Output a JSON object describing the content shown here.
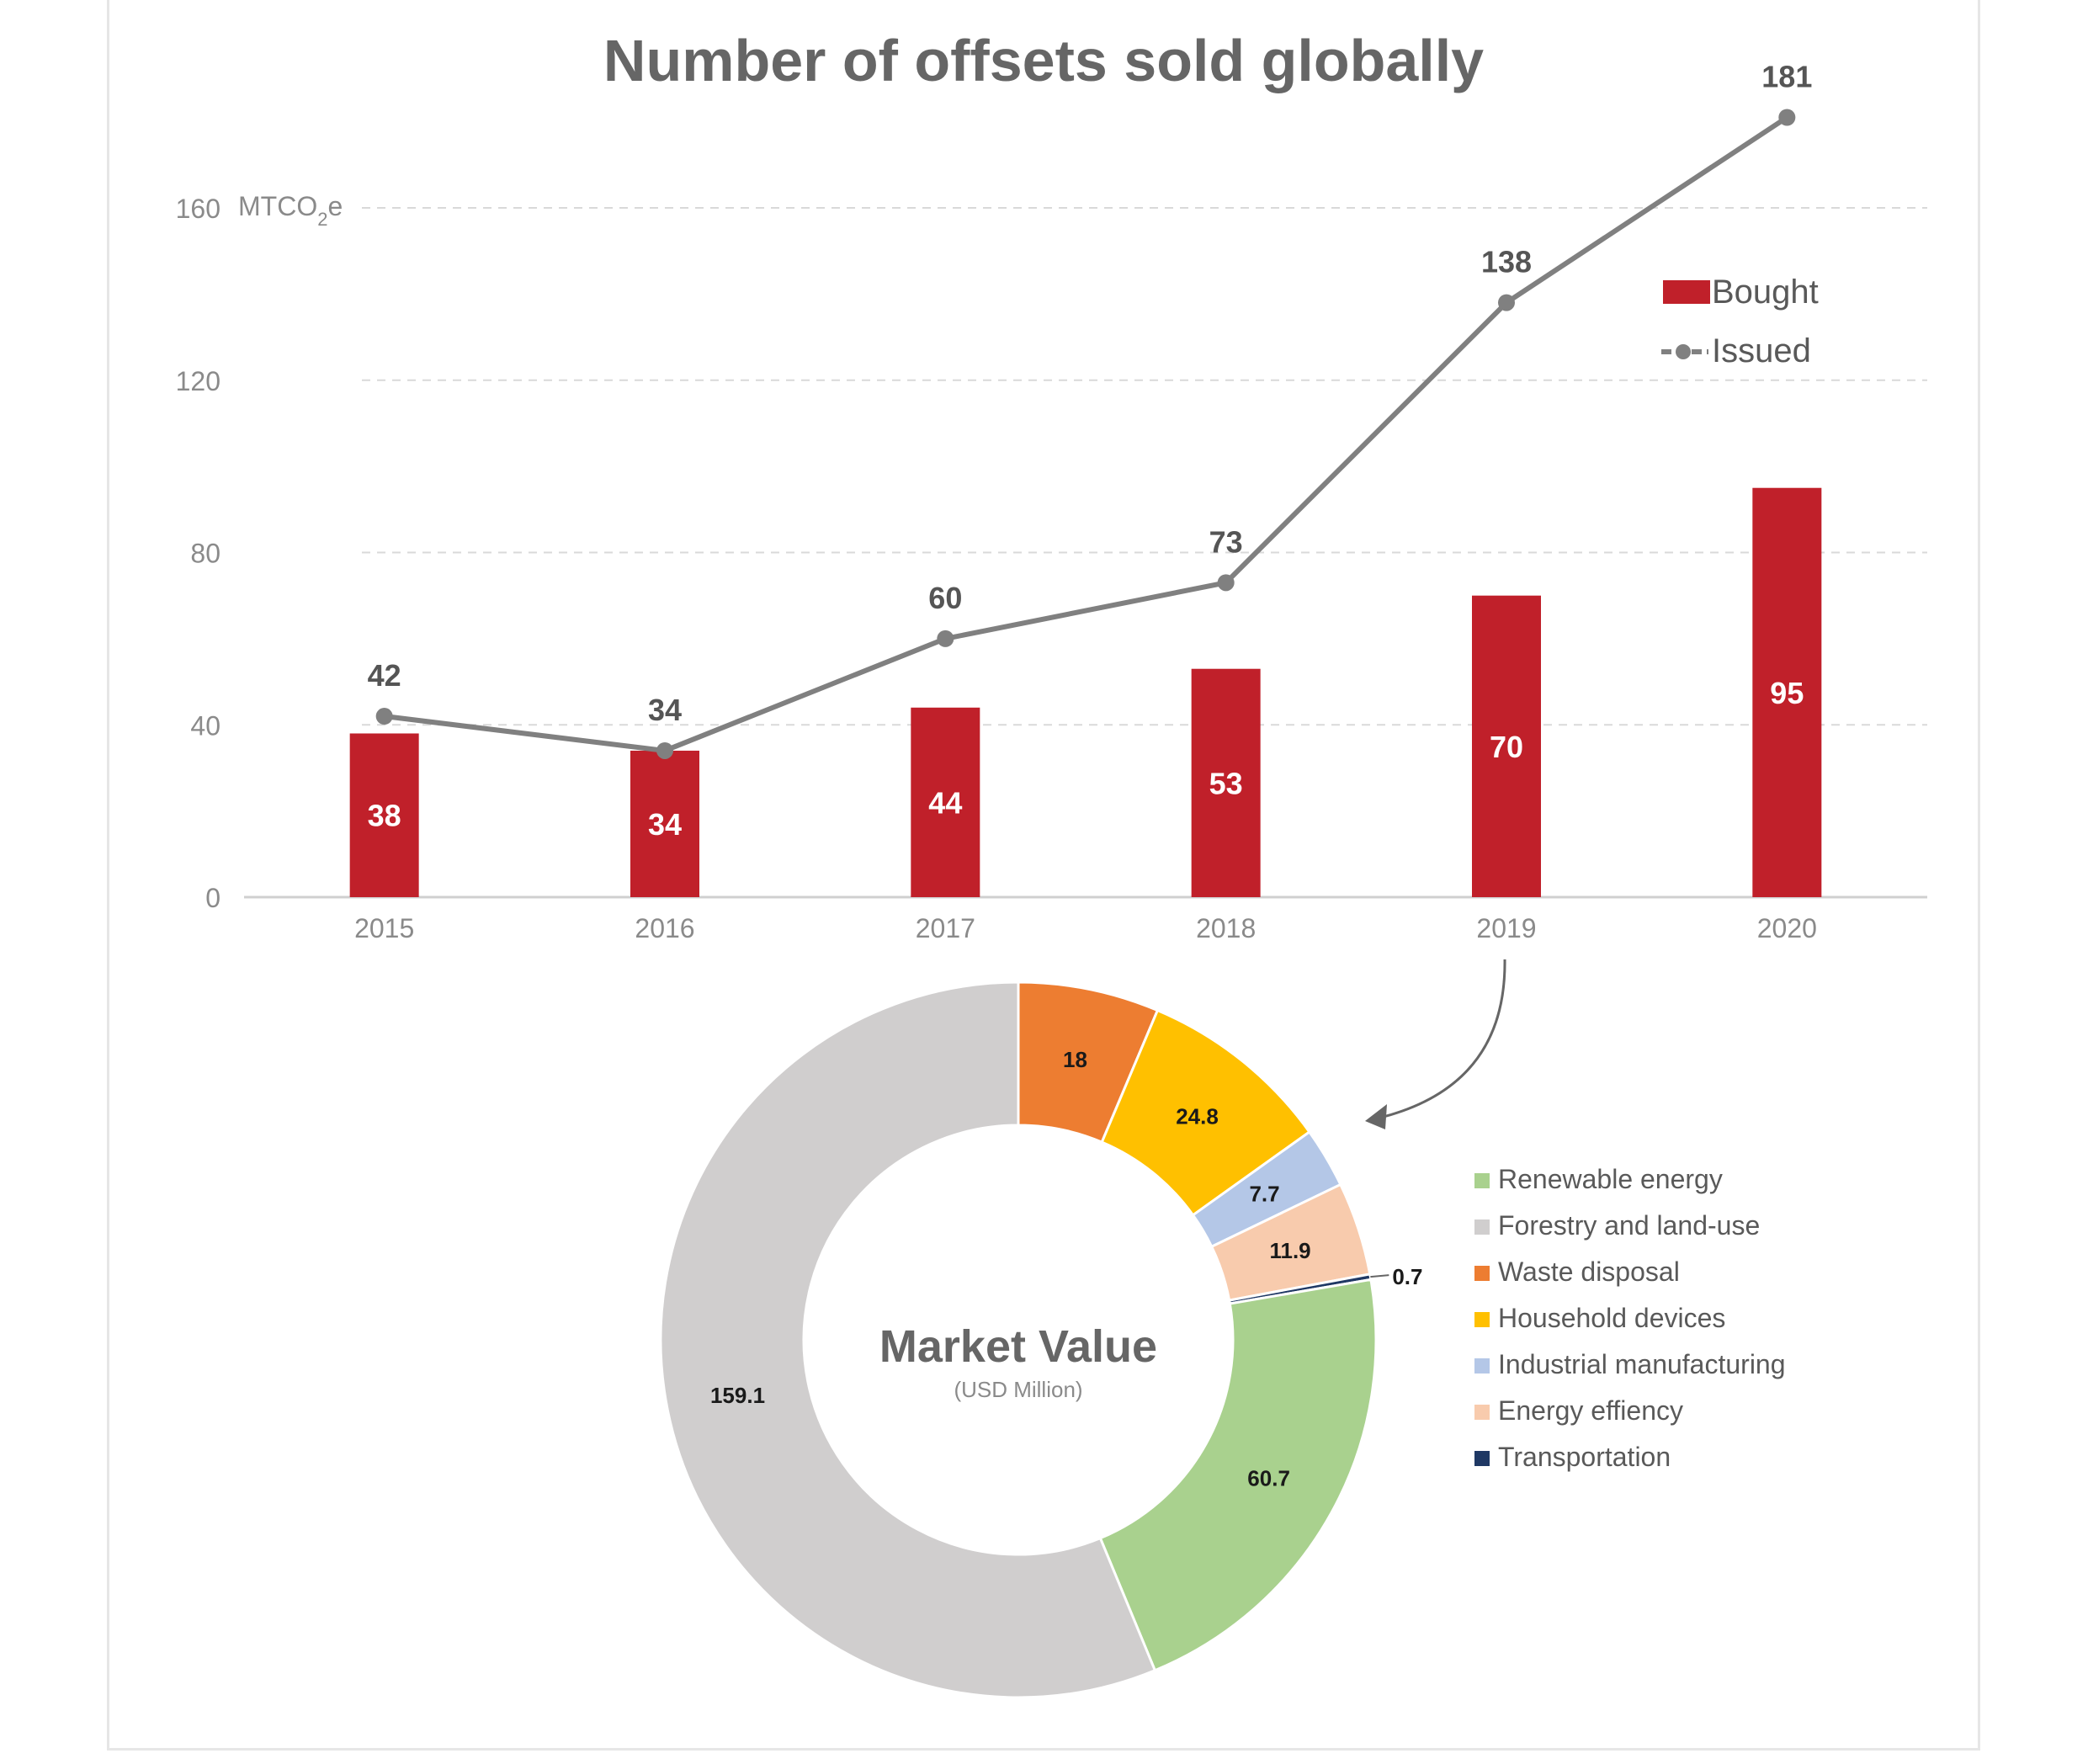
{
  "chart_data": [
    {
      "type": "bar",
      "title": "Number of offsets sold globally",
      "ylabel_unit": "MTCO",
      "ylabel_unit_sub": "2",
      "ylabel_unit_suffix": "e",
      "categories": [
        "2015",
        "2016",
        "2017",
        "2018",
        "2019",
        "2020"
      ],
      "ylim": [
        0,
        160
      ],
      "yticks": [
        "0",
        "40",
        "80",
        "120",
        "160"
      ],
      "grid": true,
      "legend_position": "top-right",
      "series": [
        {
          "name": "Bought",
          "type": "bar",
          "color": "#c0202a",
          "values": [
            38,
            34,
            44,
            53,
            70,
            95
          ]
        },
        {
          "name": "Issued",
          "type": "line",
          "color": "#808080",
          "values": [
            42,
            34,
            60,
            73,
            138,
            181
          ]
        }
      ],
      "annotation": "arrow from 2019 to Market Value donut"
    },
    {
      "type": "pie",
      "title": "Market Value",
      "subtitle": "(USD Million)",
      "legend_position": "right",
      "slices": [
        {
          "label": "Waste disposal",
          "value": 18,
          "display": "18",
          "color": "#ed7d31"
        },
        {
          "label": "Household devices",
          "value": 24.8,
          "display": "24.8",
          "color": "#ffc000"
        },
        {
          "label": "Industrial manufacturing",
          "value": 7.7,
          "display": "7.7",
          "color": "#b4c7e7"
        },
        {
          "label": "Energy effiency",
          "value": 11.9,
          "display": "11.9",
          "color": "#f8cbad"
        },
        {
          "label": "Transportation",
          "value": 0.7,
          "display": "0.7",
          "color": "#1f3864"
        },
        {
          "label": "Renewable energy",
          "value": 60.7,
          "display": "60.7",
          "color": "#a9d18e"
        },
        {
          "label": "Forestry and land-use",
          "value": 159.1,
          "display": "159.1",
          "color": "#d0cece"
        }
      ],
      "legend_order": [
        "Renewable energy",
        "Forestry and land-use",
        "Waste disposal",
        "Household devices",
        "Industrial manufacturing",
        "Energy effiency",
        "Transportation"
      ]
    }
  ]
}
